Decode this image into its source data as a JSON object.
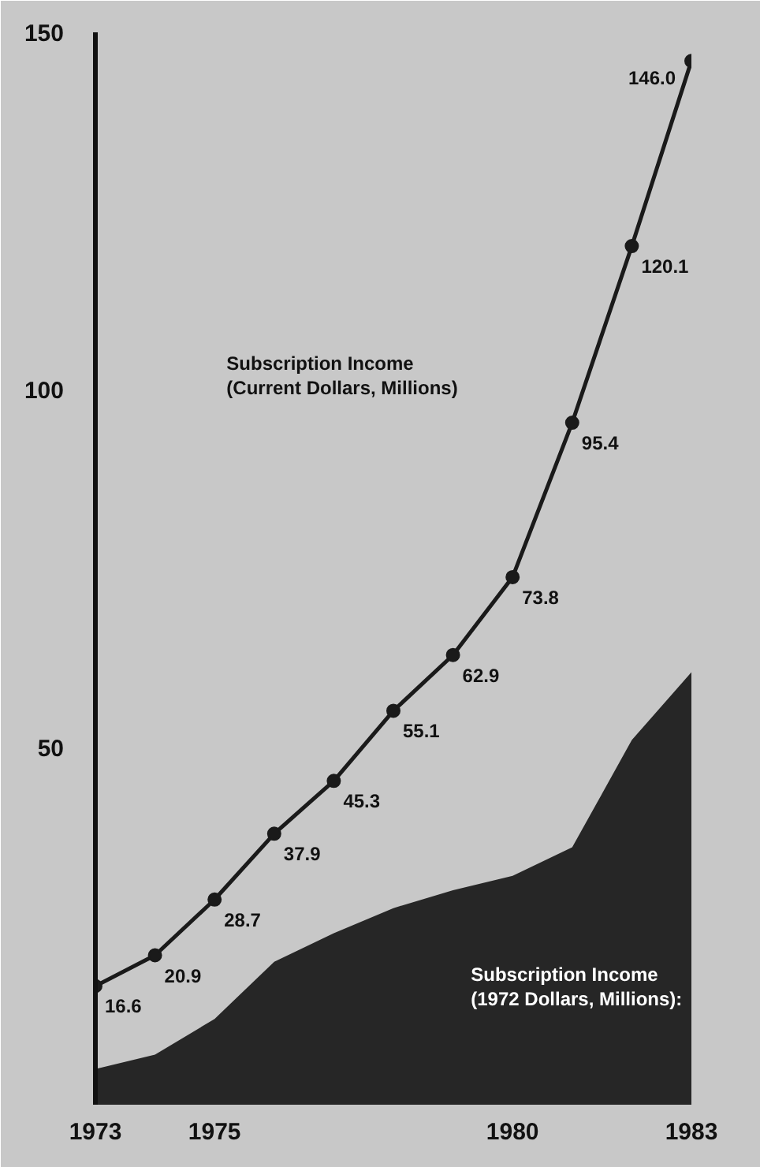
{
  "chart_data": {
    "type": "line",
    "x": [
      1973,
      1974,
      1975,
      1976,
      1977,
      1978,
      1979,
      1980,
      1981,
      1982,
      1983
    ],
    "xlim": [
      1973,
      1983
    ],
    "xticks": [
      1973,
      1975,
      1980,
      1983
    ],
    "ylim": [
      0,
      150
    ],
    "yticks": [
      50,
      100,
      150
    ],
    "grid": false,
    "line_style": "solid",
    "series": [
      {
        "name": "Subscription Income\n(1972 Dollars, Millions):",
        "type": "area",
        "color": "#262626",
        "values": [
          5,
          7,
          12,
          20,
          24,
          27.5,
          30,
          32,
          36,
          51,
          60.5
        ]
      },
      {
        "name": "Subscription Income\n(Current Dollars, Millions)",
        "marker": "circle",
        "color": "#1a1a1a",
        "values": [
          16.6,
          20.9,
          28.7,
          37.9,
          45.3,
          55.1,
          62.9,
          73.8,
          95.4,
          120.1,
          146.0
        ],
        "value_labels": [
          "16.6",
          "20.9",
          "28.7",
          "37.9",
          "45.3",
          "55.1",
          "62.9",
          "73.8",
          "95.4",
          "120.1",
          "146.0"
        ]
      }
    ]
  }
}
